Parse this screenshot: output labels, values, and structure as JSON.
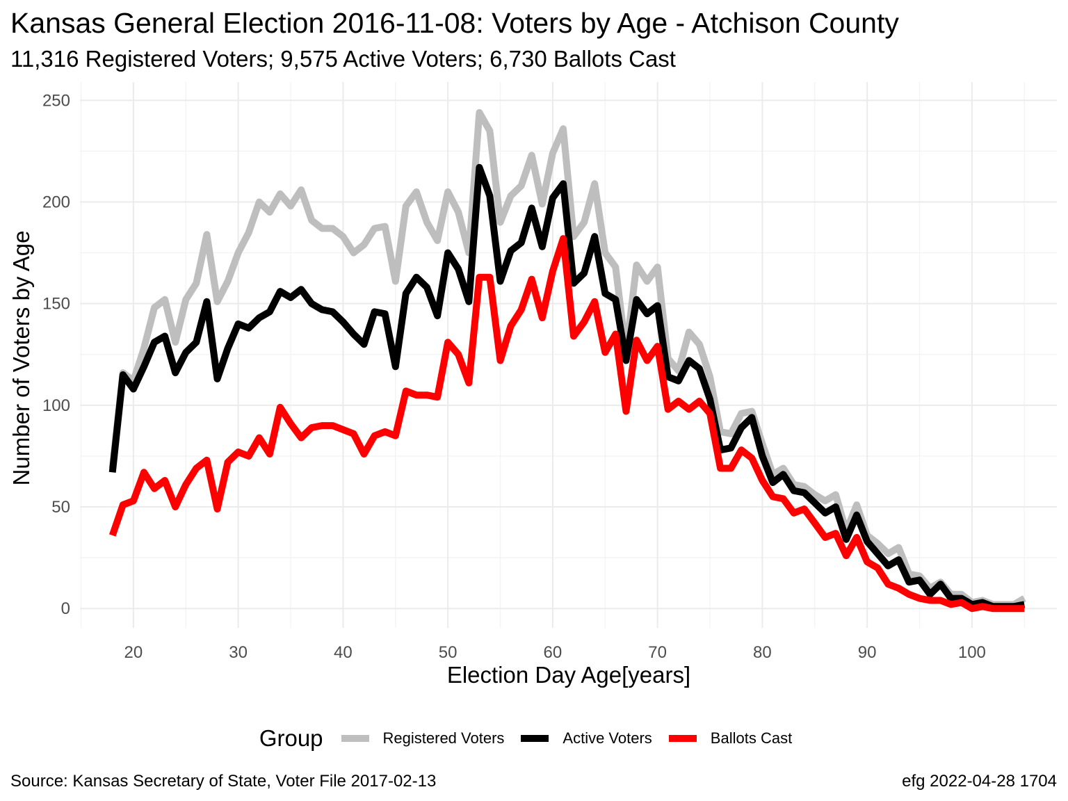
{
  "chart_data": {
    "type": "line",
    "title": "Kansas General Election 2016-11-08:  Voters by Age - Atchison County",
    "subtitle": "11,316 Registered Voters; 9,575 Active Voters; 6,730 Ballots Cast",
    "xlabel": "Election Day Age[years]",
    "ylabel": "Number of Voters by Age",
    "xlim": [
      14.9,
      108.1
    ],
    "ylim": [
      -9.5,
      259
    ],
    "xticks": [
      20,
      30,
      40,
      50,
      60,
      70,
      80,
      90,
      100
    ],
    "yticks": [
      0,
      50,
      100,
      150,
      200,
      250
    ],
    "grid": true,
    "legend": {
      "title": "Group",
      "position": "bottom"
    },
    "x": [
      18,
      19,
      20,
      21,
      22,
      23,
      24,
      25,
      26,
      27,
      28,
      29,
      30,
      31,
      32,
      33,
      34,
      35,
      36,
      37,
      38,
      39,
      40,
      41,
      42,
      43,
      44,
      45,
      46,
      47,
      48,
      49,
      50,
      51,
      52,
      53,
      54,
      55,
      56,
      57,
      58,
      59,
      60,
      61,
      62,
      63,
      64,
      65,
      66,
      67,
      68,
      69,
      70,
      71,
      72,
      73,
      74,
      75,
      76,
      77,
      78,
      79,
      80,
      81,
      82,
      83,
      84,
      85,
      86,
      87,
      88,
      89,
      90,
      91,
      92,
      93,
      94,
      95,
      96,
      97,
      98,
      99,
      100,
      101,
      102,
      103,
      104,
      105
    ],
    "series": [
      {
        "name": "Registered Voters",
        "color": "#bebebe",
        "values": [
          69,
          116,
          112,
          128,
          148,
          152,
          131,
          152,
          160,
          184,
          151,
          161,
          175,
          185,
          200,
          195,
          204,
          198,
          206,
          191,
          187,
          187,
          183,
          175,
          179,
          187,
          188,
          161,
          198,
          205,
          190,
          181,
          205,
          195,
          175,
          244,
          235,
          190,
          203,
          208,
          223,
          199,
          224,
          236,
          183,
          190,
          209,
          175,
          168,
          126,
          169,
          161,
          168,
          123,
          117,
          136,
          130,
          114,
          87,
          86,
          96,
          97,
          81,
          66,
          69,
          61,
          60,
          56,
          53,
          56,
          38,
          51,
          36,
          32,
          27,
          30,
          17,
          16,
          10,
          13,
          7,
          7,
          3,
          4,
          2,
          2,
          2,
          5
        ]
      },
      {
        "name": "Active Voters",
        "color": "#000000",
        "values": [
          67,
          115,
          108,
          119,
          131,
          134,
          116,
          126,
          131,
          151,
          113,
          128,
          140,
          138,
          143,
          146,
          156,
          153,
          157,
          150,
          147,
          146,
          141,
          135,
          130,
          146,
          145,
          119,
          155,
          163,
          158,
          144,
          175,
          167,
          151,
          217,
          203,
          161,
          176,
          180,
          197,
          178,
          202,
          209,
          160,
          165,
          183,
          155,
          152,
          122,
          152,
          145,
          149,
          114,
          112,
          122,
          118,
          103,
          78,
          79,
          89,
          94,
          75,
          62,
          66,
          58,
          57,
          52,
          47,
          50,
          34,
          46,
          33,
          27,
          21,
          24,
          13,
          14,
          7,
          12,
          5,
          5,
          2,
          3,
          1,
          1,
          1,
          2
        ]
      },
      {
        "name": "Ballots Cast",
        "color": "#ff0000",
        "values": [
          36,
          51,
          53,
          67,
          59,
          63,
          50,
          61,
          69,
          73,
          49,
          72,
          77,
          75,
          84,
          76,
          99,
          91,
          84,
          89,
          90,
          90,
          88,
          86,
          76,
          85,
          87,
          85,
          107,
          105,
          105,
          104,
          131,
          125,
          111,
          163,
          163,
          122,
          139,
          147,
          162,
          143,
          166,
          182,
          134,
          141,
          151,
          126,
          135,
          97,
          132,
          122,
          129,
          98,
          102,
          98,
          102,
          96,
          69,
          69,
          78,
          74,
          63,
          55,
          54,
          47,
          49,
          42,
          35,
          37,
          26,
          35,
          23,
          20,
          12,
          10,
          7,
          5,
          4,
          4,
          2,
          3,
          0,
          1,
          0,
          0,
          0,
          0
        ]
      }
    ]
  },
  "caption": {
    "left": "Source:  Kansas Secretary of State, Voter File  2017-02-13",
    "right": "efg 2022-04-28 1704"
  }
}
